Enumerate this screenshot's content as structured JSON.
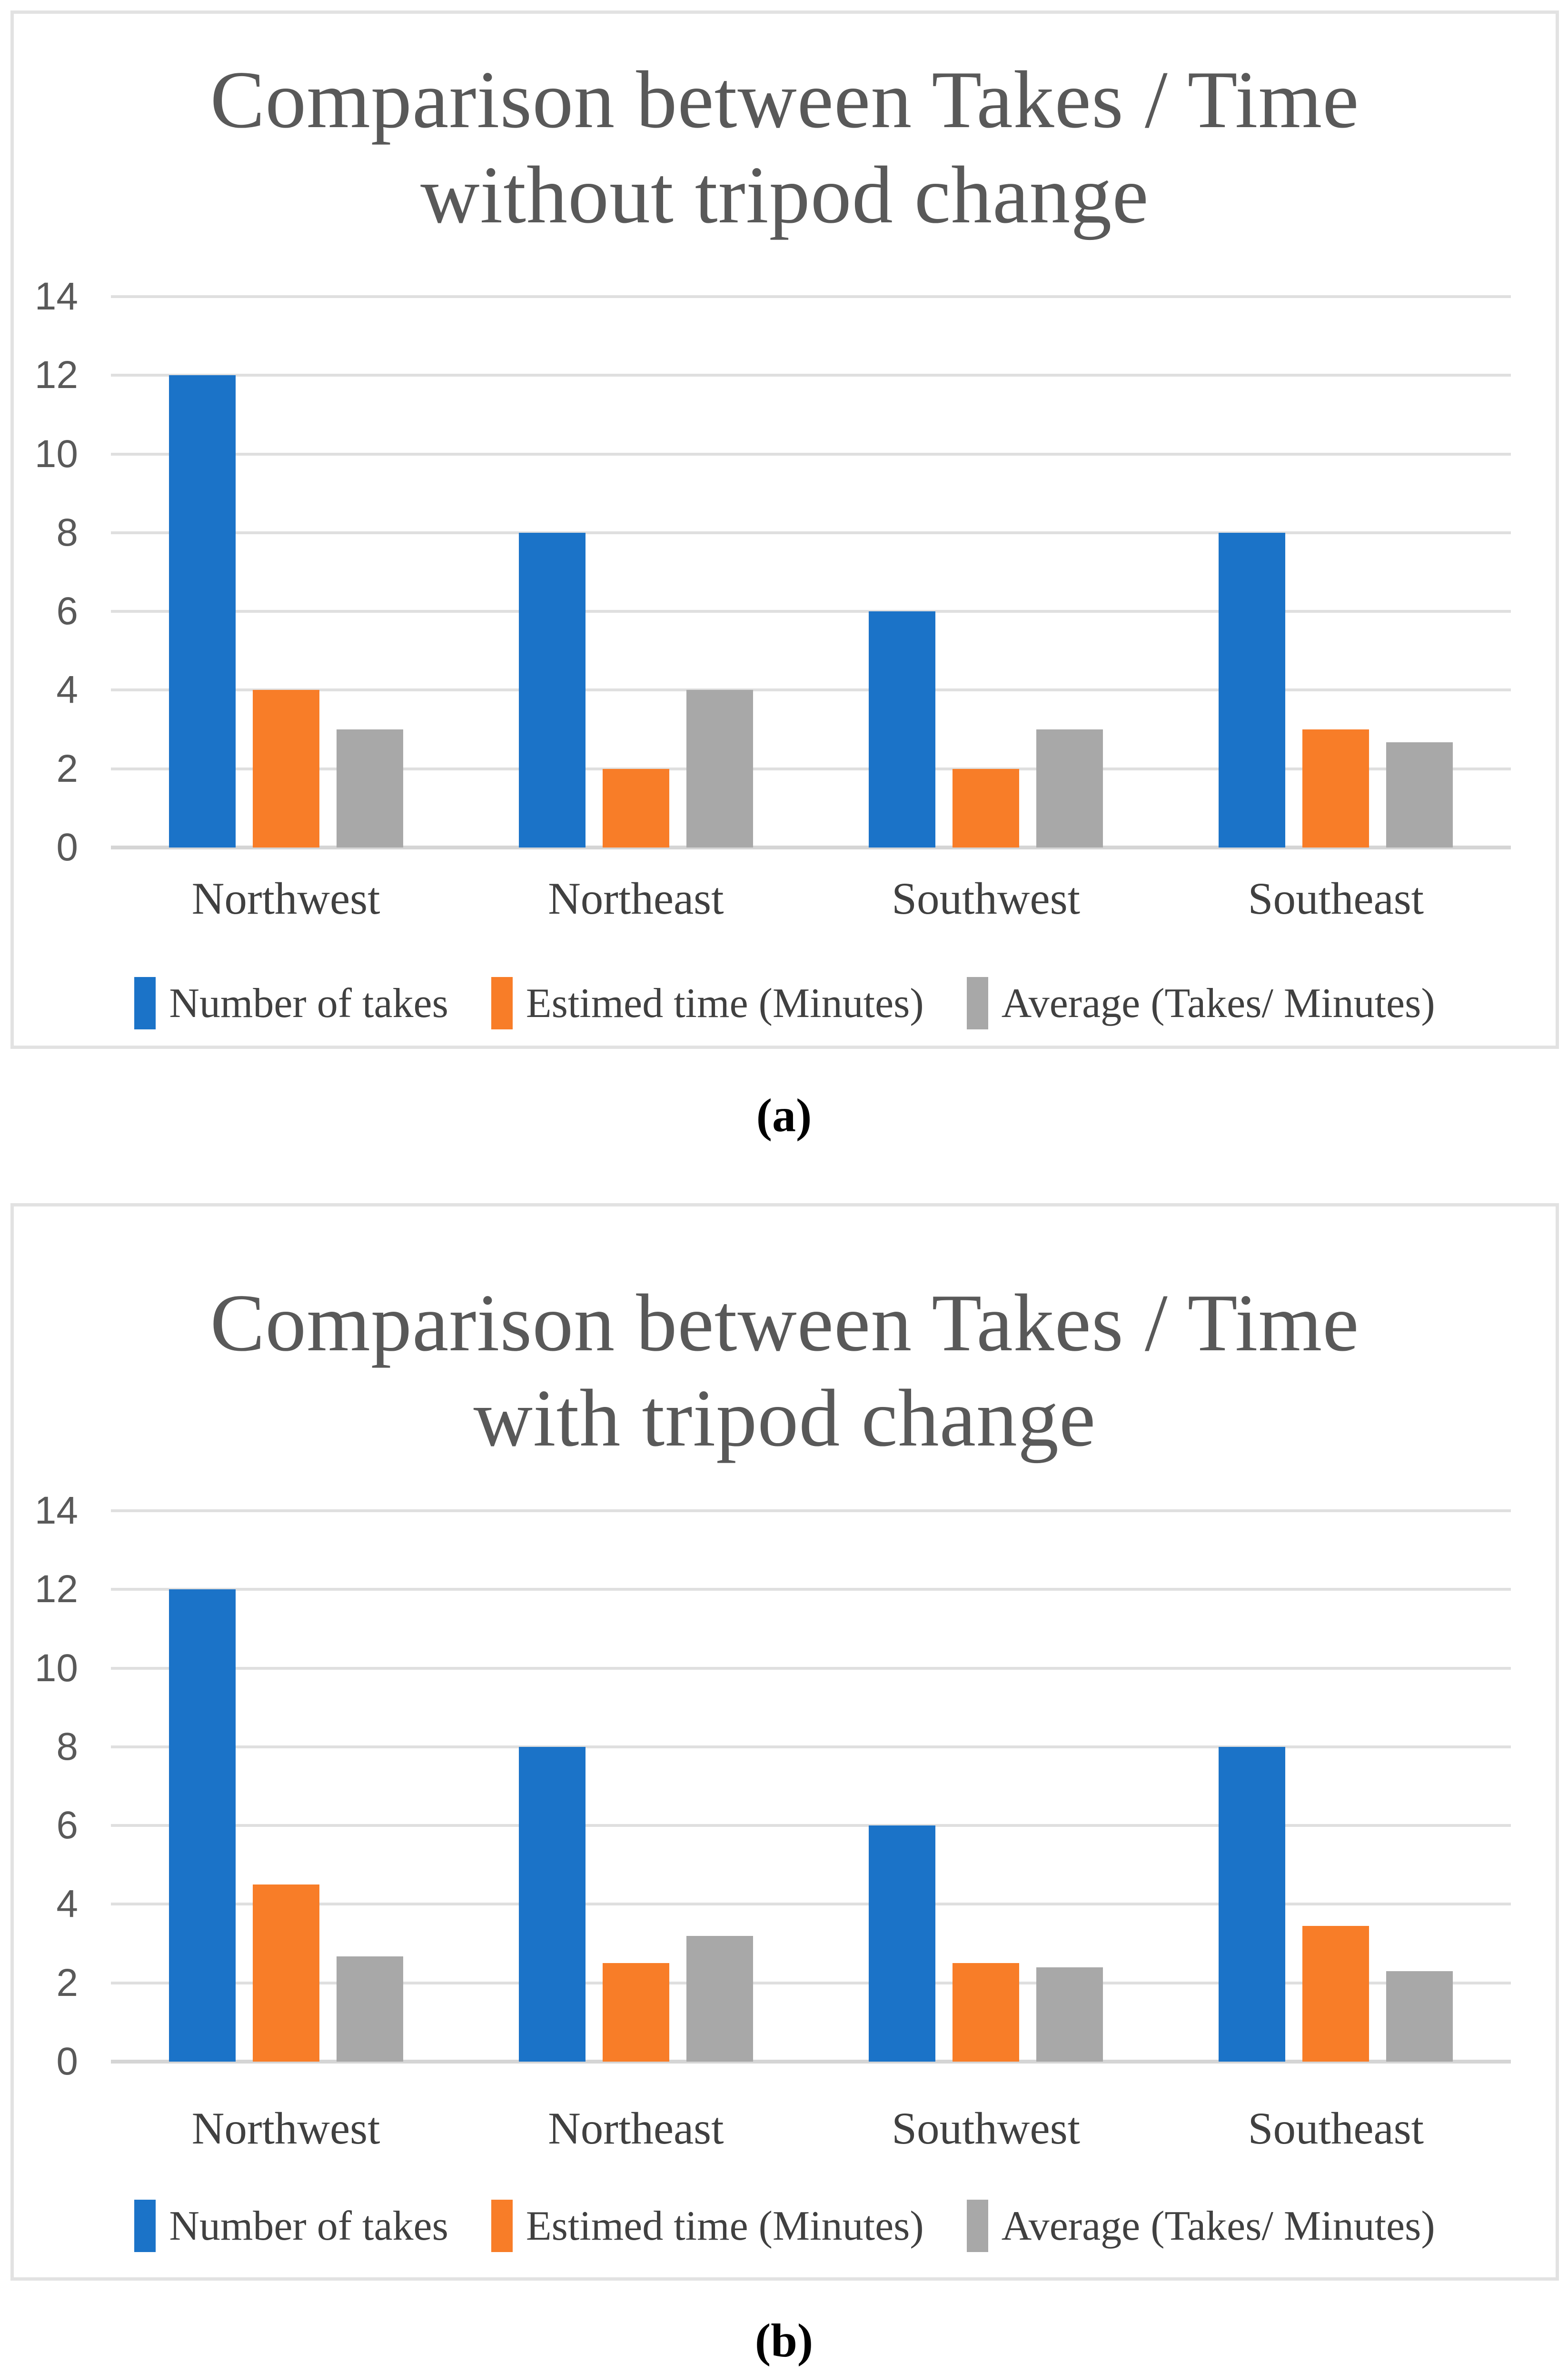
{
  "figure": {
    "caption_a": "(a)",
    "caption_b": "(b)"
  },
  "colors": {
    "takes_blue": "#1B73C8",
    "time_orange": "#F87D28",
    "average_gray": "#A8A8A8",
    "gridline": "#DFDFDF",
    "frame_border": "#E2E2E2",
    "title_gray": "#595959",
    "label_gray": "#404040"
  },
  "chart_data": [
    {
      "type": "bar",
      "title": "Comparison between Takes / Time without tripod change",
      "title_lines": [
        "Comparison between Takes / Time",
        "without tripod change"
      ],
      "categories": [
        "Northwest",
        "Northeast",
        "Southwest",
        "Southeast"
      ],
      "series": [
        {
          "name": "Number of takes",
          "color": "#1B73C8",
          "values": [
            12,
            8,
            6,
            8
          ]
        },
        {
          "name": "Estimed time (Minutes)",
          "color": "#F87D28",
          "values": [
            4,
            2,
            2,
            3
          ]
        },
        {
          "name": "Average (Takes/ Minutes)",
          "color": "#A8A8A8",
          "values": [
            3,
            4,
            3,
            2.67
          ]
        }
      ],
      "xlabel": "",
      "ylabel": "",
      "ylim": [
        0,
        14
      ],
      "yticks": [
        0,
        2,
        4,
        6,
        8,
        10,
        12,
        14
      ],
      "grid": true,
      "legend_position": "bottom"
    },
    {
      "type": "bar",
      "title": "Comparison between Takes / Time with tripod change",
      "title_lines": [
        "Comparison between Takes / Time",
        "with tripod change"
      ],
      "categories": [
        "Northwest",
        "Northeast",
        "Southwest",
        "Southeast"
      ],
      "series": [
        {
          "name": "Number of takes",
          "color": "#1B73C8",
          "values": [
            12,
            8,
            6,
            8
          ]
        },
        {
          "name": "Estimed time (Minutes)",
          "color": "#F87D28",
          "values": [
            4.5,
            2.5,
            2.5,
            3.45
          ]
        },
        {
          "name": "Average (Takes/ Minutes)",
          "color": "#A8A8A8",
          "values": [
            2.67,
            3.2,
            2.4,
            2.3
          ]
        }
      ],
      "xlabel": "",
      "ylabel": "",
      "ylim": [
        0,
        14
      ],
      "yticks": [
        0,
        2,
        4,
        6,
        8,
        10,
        12,
        14
      ],
      "grid": true,
      "legend_position": "bottom"
    }
  ]
}
